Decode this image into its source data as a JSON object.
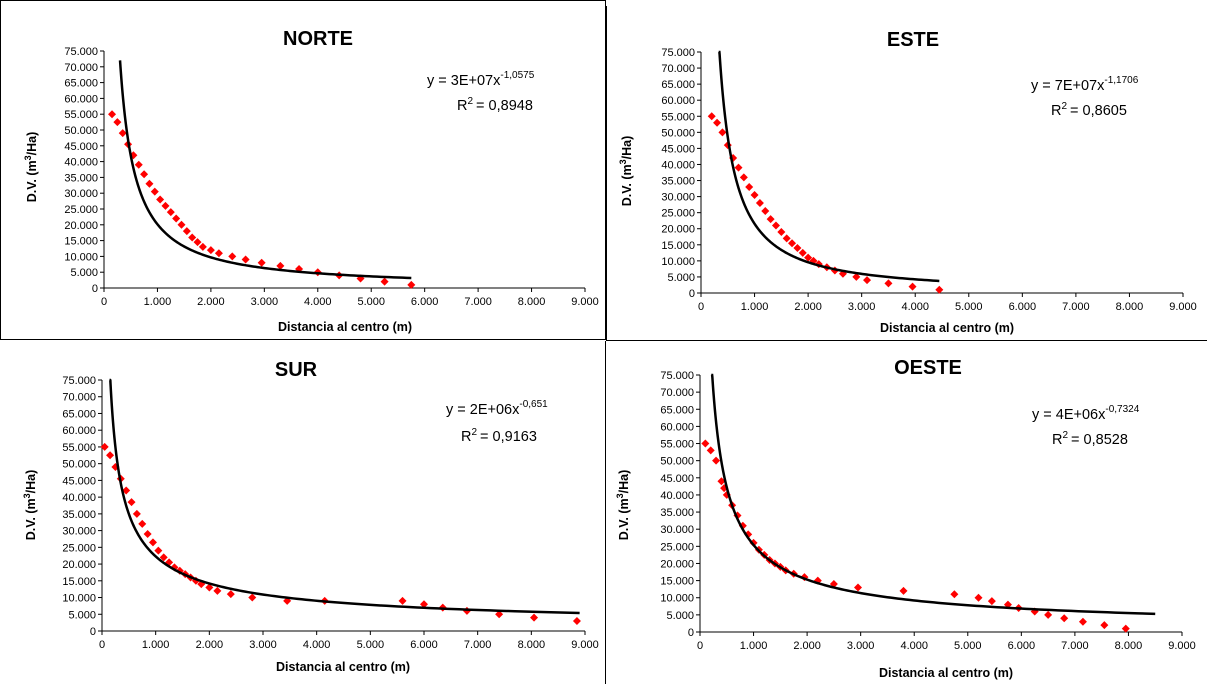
{
  "chart_data": [
    {
      "type": "scatter",
      "title": "NORTE",
      "xlabel": "Distancia al centro (m)",
      "ylabel": "D.V. (m3/Ha)",
      "xlim": [
        0,
        9000
      ],
      "ylim": [
        0,
        75000
      ],
      "x_ticks": [
        "0",
        "1.000",
        "2.000",
        "3.000",
        "4.000",
        "5.000",
        "6.000",
        "7.000",
        "8.000",
        "9.000"
      ],
      "y_ticks": [
        "0",
        "5.000",
        "10.000",
        "15.000",
        "20.000",
        "25.000",
        "30.000",
        "35.000",
        "40.000",
        "45.000",
        "50.000",
        "55.000",
        "60.000",
        "65.000",
        "70.000",
        "75.000"
      ],
      "trend": {
        "coef": 30000000.0,
        "exp": -1.0575,
        "x_range": [
          300,
          5750
        ],
        "equation": "y = 3E+07x",
        "exponent_label": "-1,0575",
        "r2_value": "= 0,8948"
      },
      "points": [
        [
          150,
          55000
        ],
        [
          250,
          52500
        ],
        [
          350,
          49000
        ],
        [
          450,
          45500
        ],
        [
          550,
          42000
        ],
        [
          650,
          39000
        ],
        [
          750,
          36000
        ],
        [
          850,
          33000
        ],
        [
          950,
          30500
        ],
        [
          1050,
          28000
        ],
        [
          1150,
          26000
        ],
        [
          1250,
          24000
        ],
        [
          1350,
          22000
        ],
        [
          1450,
          20000
        ],
        [
          1550,
          18000
        ],
        [
          1650,
          16000
        ],
        [
          1750,
          14500
        ],
        [
          1850,
          13000
        ],
        [
          2000,
          12000
        ],
        [
          2150,
          11000
        ],
        [
          2400,
          10000
        ],
        [
          2650,
          9000
        ],
        [
          2950,
          8000
        ],
        [
          3300,
          7000
        ],
        [
          3650,
          6000
        ],
        [
          4000,
          5000
        ],
        [
          4400,
          4000
        ],
        [
          4800,
          3000
        ],
        [
          5250,
          2000
        ],
        [
          5750,
          1000
        ]
      ],
      "point_color": "#ff0000",
      "line_color": "#000000"
    },
    {
      "type": "scatter",
      "title": "ESTE",
      "xlabel": "Distancia al centro (m)",
      "ylabel": "D.V. (m3/Ha)",
      "xlim": [
        0,
        9000
      ],
      "ylim": [
        0,
        75000
      ],
      "x_ticks": [
        "0",
        "1.000",
        "2.000",
        "3.000",
        "4.000",
        "5.000",
        "6.000",
        "7.000",
        "8.000",
        "9.000"
      ],
      "y_ticks": [
        "0",
        "5.000",
        "10.000",
        "15.000",
        "20.000",
        "25.000",
        "30.000",
        "35.000",
        "40.000",
        "45.000",
        "50.000",
        "55.000",
        "60.000",
        "65.000",
        "70.000",
        "75.000"
      ],
      "trend": {
        "coef": 70000000.0,
        "exp": -1.1706,
        "x_range": [
          330,
          4450
        ],
        "equation": "y = 7E+07x",
        "exponent_label": "-1,1706",
        "r2_value": "= 0,8605"
      },
      "points": [
        [
          200,
          55000
        ],
        [
          300,
          53000
        ],
        [
          400,
          50000
        ],
        [
          500,
          46000
        ],
        [
          600,
          42000
        ],
        [
          700,
          39000
        ],
        [
          800,
          36000
        ],
        [
          900,
          33000
        ],
        [
          1000,
          30500
        ],
        [
          1100,
          28000
        ],
        [
          1200,
          25500
        ],
        [
          1300,
          23000
        ],
        [
          1400,
          21000
        ],
        [
          1500,
          19000
        ],
        [
          1600,
          17000
        ],
        [
          1700,
          15500
        ],
        [
          1800,
          14000
        ],
        [
          1900,
          12500
        ],
        [
          2000,
          11000
        ],
        [
          2100,
          10000
        ],
        [
          2200,
          9000
        ],
        [
          2350,
          8000
        ],
        [
          2500,
          7000
        ],
        [
          2650,
          6000
        ],
        [
          2900,
          5000
        ],
        [
          3100,
          4000
        ],
        [
          3500,
          3000
        ],
        [
          3950,
          2000
        ],
        [
          4450,
          1000
        ]
      ],
      "point_color": "#ff0000",
      "line_color": "#000000"
    },
    {
      "type": "scatter",
      "title": "SUR",
      "xlabel": "Distancia al centro (m)",
      "ylabel": "D.V. (m3/Ha)",
      "xlim": [
        0,
        9000
      ],
      "ylim": [
        0,
        75000
      ],
      "x_ticks": [
        "0",
        "1.000",
        "2.000",
        "3.000",
        "4.000",
        "5.000",
        "6.000",
        "7.000",
        "8.000",
        "9.000"
      ],
      "y_ticks": [
        "0",
        "5.000",
        "10.000",
        "15.000",
        "20.000",
        "25.000",
        "30.000",
        "35.000",
        "40.000",
        "45.000",
        "50.000",
        "55.000",
        "60.000",
        "65.000",
        "70.000",
        "75.000"
      ],
      "trend": {
        "coef": 2000000.0,
        "exp": -0.651,
        "x_range": [
          140,
          8900
        ],
        "equation": "y = 2E+06x",
        "exponent_label": "-0,651",
        "r2_value": "= 0,9163"
      },
      "points": [
        [
          50,
          55000
        ],
        [
          150,
          52500
        ],
        [
          250,
          49000
        ],
        [
          350,
          45500
        ],
        [
          450,
          42000
        ],
        [
          550,
          38500
        ],
        [
          650,
          35000
        ],
        [
          750,
          32000
        ],
        [
          850,
          29000
        ],
        [
          950,
          26500
        ],
        [
          1050,
          24000
        ],
        [
          1150,
          22000
        ],
        [
          1250,
          20500
        ],
        [
          1350,
          19000
        ],
        [
          1450,
          18000
        ],
        [
          1550,
          17000
        ],
        [
          1650,
          16000
        ],
        [
          1750,
          15000
        ],
        [
          1850,
          14000
        ],
        [
          2000,
          13000
        ],
        [
          2150,
          12000
        ],
        [
          2400,
          11000
        ],
        [
          2800,
          10000
        ],
        [
          3450,
          9000
        ],
        [
          4150,
          9000
        ],
        [
          5600,
          9000
        ],
        [
          6000,
          8000
        ],
        [
          6350,
          7000
        ],
        [
          6800,
          6000
        ],
        [
          7400,
          5000
        ],
        [
          8050,
          4000
        ],
        [
          8850,
          3000
        ]
      ],
      "point_color": "#ff0000",
      "line_color": "#000000"
    },
    {
      "type": "scatter",
      "title": "OESTE",
      "xlabel": "Distancia al centro (m)",
      "ylabel": "D.V. (m3/Ha)",
      "xlim": [
        0,
        9000
      ],
      "ylim": [
        0,
        75000
      ],
      "x_ticks": [
        "0",
        "1.000",
        "2.000",
        "3.000",
        "4.000",
        "5.000",
        "6.000",
        "7.000",
        "8.000",
        "9.000"
      ],
      "y_ticks": [
        "0",
        "5.000",
        "10.000",
        "15.000",
        "20.000",
        "25.000",
        "30.000",
        "35.000",
        "40.000",
        "45.000",
        "50.000",
        "55.000",
        "60.000",
        "65.000",
        "70.000",
        "75.000"
      ],
      "trend": {
        "coef": 4000000.0,
        "exp": -0.7324,
        "x_range": [
          210,
          8500
        ],
        "equation": "y = 4E+06x",
        "exponent_label": "-0,7324",
        "r2_value": "= 0,8528"
      },
      "points": [
        [
          100,
          55000
        ],
        [
          200,
          53000
        ],
        [
          300,
          50000
        ],
        [
          400,
          44000
        ],
        [
          450,
          42000
        ],
        [
          500,
          40000
        ],
        [
          600,
          37000
        ],
        [
          700,
          34000
        ],
        [
          800,
          31000
        ],
        [
          900,
          28500
        ],
        [
          1000,
          26000
        ],
        [
          1100,
          24000
        ],
        [
          1200,
          22500
        ],
        [
          1300,
          21000
        ],
        [
          1400,
          20000
        ],
        [
          1500,
          19000
        ],
        [
          1600,
          18000
        ],
        [
          1750,
          17000
        ],
        [
          1950,
          16000
        ],
        [
          2200,
          15000
        ],
        [
          2500,
          14000
        ],
        [
          2950,
          13000
        ],
        [
          3800,
          12000
        ],
        [
          4750,
          11000
        ],
        [
          5200,
          10000
        ],
        [
          5450,
          9000
        ],
        [
          5750,
          8000
        ],
        [
          5950,
          7000
        ],
        [
          6250,
          6000
        ],
        [
          6500,
          5000
        ],
        [
          6800,
          4000
        ],
        [
          7150,
          3000
        ],
        [
          7550,
          2000
        ],
        [
          7950,
          1000
        ]
      ],
      "point_color": "#ff0000",
      "line_color": "#000000"
    }
  ]
}
